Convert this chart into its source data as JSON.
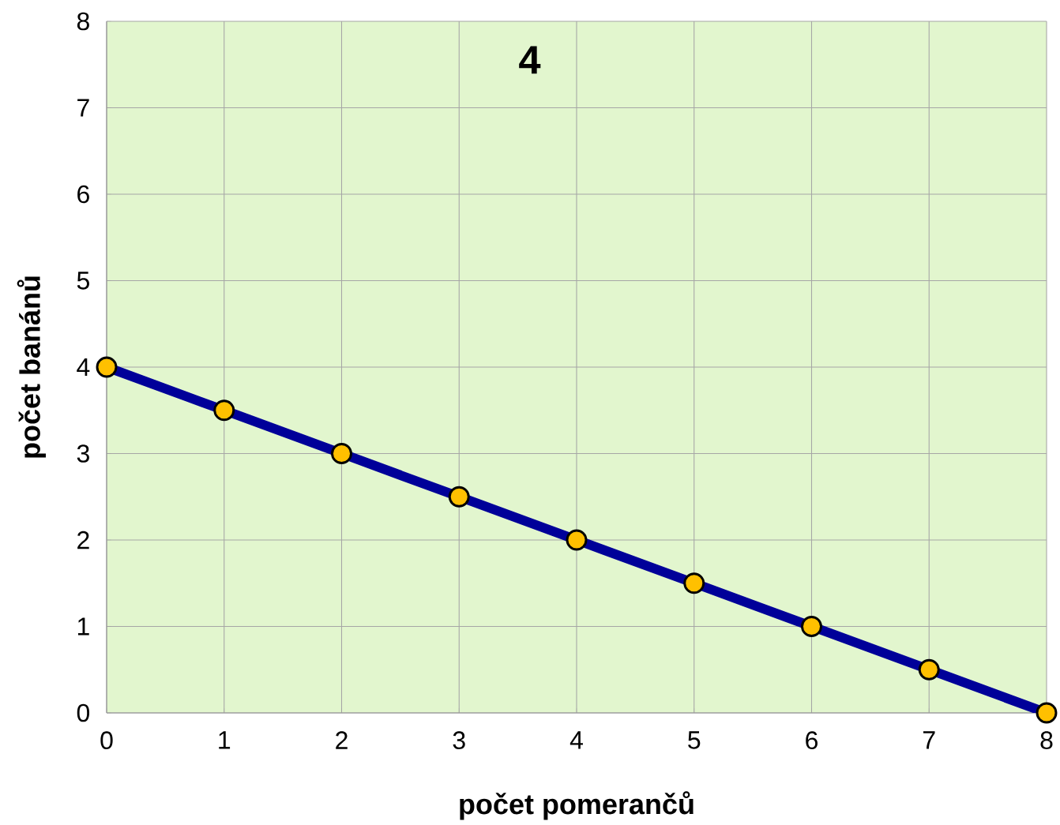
{
  "chart_data": {
    "type": "line",
    "title": "4",
    "xlabel": "počet pomerančů",
    "ylabel": "počet banánů",
    "x": [
      0,
      1,
      2,
      3,
      4,
      5,
      6,
      7,
      8
    ],
    "series": [
      {
        "color": "#000099",
        "values": [
          4,
          3.5,
          3,
          2.5,
          2,
          1.5,
          1,
          0.5,
          0
        ]
      }
    ],
    "xlim": [
      0,
      8
    ],
    "ylim": [
      0,
      8
    ],
    "xticks": [
      0,
      1,
      2,
      3,
      4,
      5,
      6,
      7,
      8
    ],
    "yticks": [
      0,
      1,
      2,
      3,
      4,
      5,
      6,
      7,
      8
    ],
    "grid": true,
    "marker": "circle",
    "line_style": "solid"
  }
}
